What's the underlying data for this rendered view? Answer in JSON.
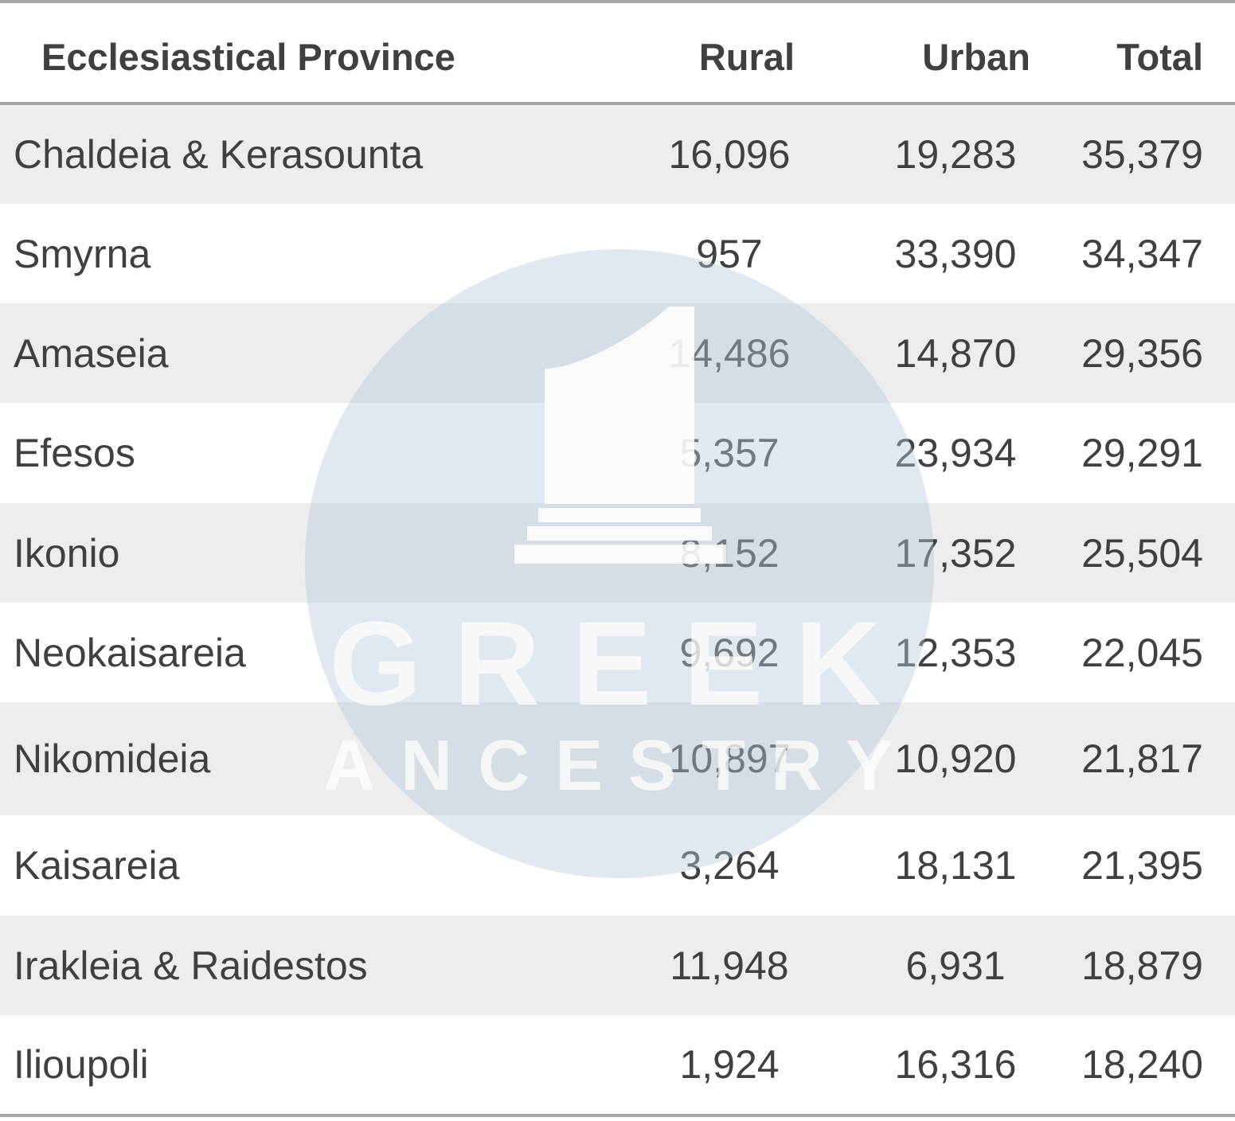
{
  "table": {
    "headers": {
      "province": "Ecclesiastical Province",
      "rural": "Rural",
      "urban": "Urban",
      "total": "Total"
    },
    "rows": [
      {
        "province": "Chaldeia & Kerasounta",
        "rural": "16,096",
        "urban": "19,283",
        "total": "35,379"
      },
      {
        "province": "Smyrna",
        "rural": "957",
        "urban": "33,390",
        "total": "34,347"
      },
      {
        "province": "Amaseia",
        "rural": "14,486",
        "urban": "14,870",
        "total": "29,356"
      },
      {
        "province": "Efesos",
        "rural": "5,357",
        "urban": "23,934",
        "total": "29,291"
      },
      {
        "province": "Ikonio",
        "rural": "8,152",
        "urban": "17,352",
        "total": "25,504"
      },
      {
        "province": "Neokaisareia",
        "rural": "9,692",
        "urban": "12,353",
        "total": "22,045"
      },
      {
        "province": "Nikomideia",
        "rural": "10,897",
        "urban": "10,920",
        "total": "21,817"
      },
      {
        "province": "Kaisareia",
        "rural": "3,264",
        "urban": "18,131",
        "total": "21,395"
      },
      {
        "province": "Irakleia & Raidestos",
        "rural": "11,948",
        "urban": "6,931",
        "total": "18,879"
      },
      {
        "province": "Ilioupoli",
        "rural": "1,924",
        "urban": "16,316",
        "total": "18,240"
      }
    ]
  },
  "watermark": {
    "line1": "GREEK",
    "line2": "ANCESTRY",
    "circle_color": "#c9d6e3",
    "text_color": "#ffffff"
  },
  "colors": {
    "rule": "#a6a6a6",
    "shaded_row": "#ededed",
    "text": "#404040"
  }
}
